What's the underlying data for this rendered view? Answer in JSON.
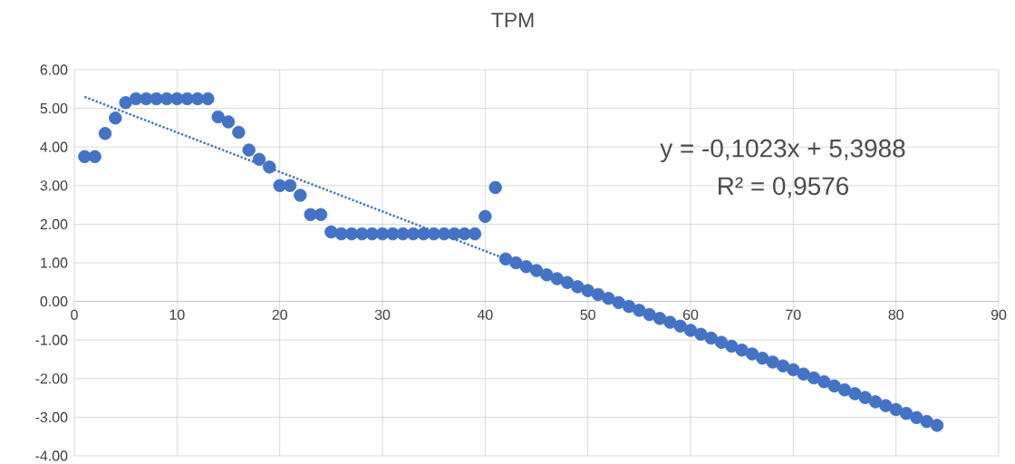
{
  "chart_data": {
    "type": "scatter",
    "title": "TPM",
    "x": [
      1,
      2,
      3,
      4,
      5,
      6,
      7,
      8,
      9,
      10,
      11,
      12,
      13,
      14,
      15,
      16,
      17,
      18,
      19,
      20,
      21,
      22,
      23,
      24,
      25,
      26,
      27,
      28,
      29,
      30,
      31,
      32,
      33,
      34,
      35,
      36,
      37,
      38,
      39,
      40,
      41,
      42,
      43,
      44,
      45,
      46,
      47,
      48,
      49,
      50,
      51,
      52,
      53,
      54,
      55,
      56,
      57,
      58,
      59,
      60,
      61,
      62,
      63,
      64,
      65,
      66,
      67,
      68,
      69,
      70,
      71,
      72,
      73,
      74,
      75,
      76,
      77,
      78,
      79,
      80,
      81,
      82,
      83,
      84
    ],
    "series": [
      {
        "color": "#4472c4",
        "marker": "circle",
        "values": [
          3.75,
          3.75,
          4.35,
          4.75,
          5.15,
          5.25,
          5.25,
          5.25,
          5.25,
          5.25,
          5.25,
          5.25,
          5.25,
          4.78,
          4.65,
          4.38,
          3.92,
          3.68,
          3.48,
          3.0,
          3.0,
          2.75,
          2.25,
          2.25,
          1.8,
          1.75,
          1.75,
          1.75,
          1.75,
          1.75,
          1.75,
          1.75,
          1.75,
          1.75,
          1.75,
          1.75,
          1.75,
          1.75,
          1.75,
          2.2,
          2.95,
          1.1,
          1.0,
          0.9,
          0.8,
          0.69,
          0.59,
          0.49,
          0.38,
          0.28,
          0.18,
          0.08,
          -0.03,
          -0.13,
          -0.23,
          -0.34,
          -0.44,
          -0.54,
          -0.64,
          -0.75,
          -0.85,
          -0.95,
          -1.06,
          -1.16,
          -1.26,
          -1.36,
          -1.47,
          -1.57,
          -1.67,
          -1.77,
          -1.88,
          -1.98,
          -2.08,
          -2.19,
          -2.29,
          -2.39,
          -2.49,
          -2.6,
          -2.7,
          -2.8,
          -2.9,
          -3.01,
          -3.11,
          -3.21
        ]
      },
      {
        "type": "line",
        "color": "#4472c4",
        "line_style": "dotted",
        "marker": "none",
        "x": [
          1,
          84
        ],
        "values": [
          5.3,
          -3.2
        ]
      }
    ],
    "xlim": [
      0,
      90
    ],
    "xticks": [
      0,
      10,
      20,
      30,
      40,
      50,
      60,
      70,
      80,
      90
    ],
    "ylim": [
      -4,
      6
    ],
    "yticks": [
      {
        "value": -4,
        "label": "-4.00"
      },
      {
        "value": -3,
        "label": "-3.00"
      },
      {
        "value": -2,
        "label": "-2.00"
      },
      {
        "value": -1,
        "label": "-1.00"
      },
      {
        "value": 0,
        "label": "0.00"
      },
      {
        "value": 1,
        "label": "1.00"
      },
      {
        "value": 2,
        "label": "2.00"
      },
      {
        "value": 3,
        "label": "3.00"
      },
      {
        "value": 4,
        "label": "4.00"
      },
      {
        "value": 5,
        "label": "5.00"
      },
      {
        "value": 6,
        "label": "6.00"
      }
    ],
    "grid": true,
    "annotations": [
      "y = -0,1023x + 5,3988",
      "R² = 0,9576"
    ]
  }
}
